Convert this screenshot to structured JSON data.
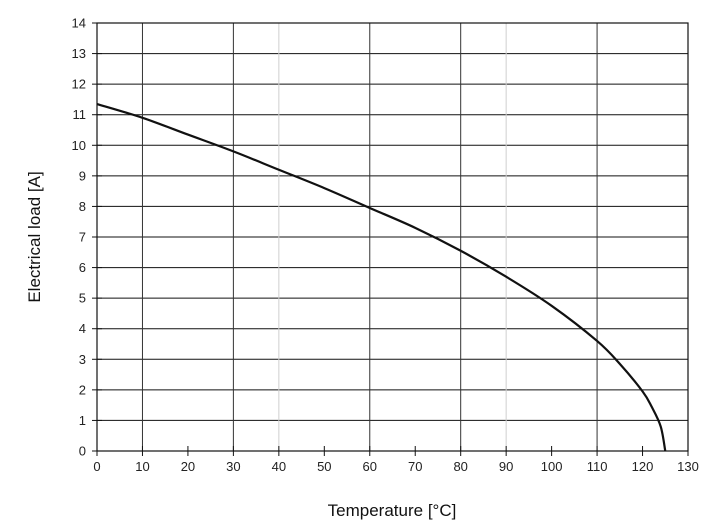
{
  "chart_data": {
    "type": "line",
    "title": "",
    "xlabel": "Temperature  [°C]",
    "ylabel": "Electrical load  [A]",
    "xlim": [
      0,
      130
    ],
    "ylim": [
      0,
      14
    ],
    "x_ticks": [
      0,
      10,
      20,
      30,
      40,
      50,
      60,
      70,
      80,
      90,
      100,
      110,
      120,
      130
    ],
    "y_ticks": [
      0,
      1,
      2,
      3,
      4,
      5,
      6,
      7,
      8,
      9,
      10,
      11,
      12,
      13,
      14
    ],
    "major_x_gridlines": [
      10,
      30,
      60,
      80,
      110
    ],
    "minor_x_gridlines": [
      40,
      90
    ],
    "grid": true,
    "legend": "none",
    "series": [
      {
        "color": "#111111",
        "x": [
          0,
          10,
          20,
          30,
          40,
          50,
          60,
          70,
          80,
          90,
          100,
          110,
          115,
          120,
          122,
          124,
          125
        ],
        "y": [
          11.35,
          10.9,
          10.35,
          9.8,
          9.2,
          8.6,
          7.95,
          7.3,
          6.55,
          5.7,
          4.75,
          3.6,
          2.85,
          1.95,
          1.45,
          0.8,
          0
        ]
      }
    ]
  }
}
